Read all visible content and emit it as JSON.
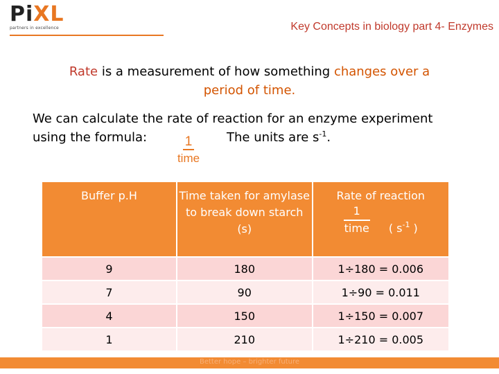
{
  "logo": {
    "name_prefix": "Pi",
    "name_suffix": "XL",
    "tagline": "partners in excellence"
  },
  "header": {
    "title": "Key Concepts in biology part 4- Enzymes"
  },
  "intro": {
    "word_rate": "Rate",
    "part1": " is a measurement of how something ",
    "changes": "changes over a",
    "period": "period of time."
  },
  "body": {
    "line1": "We can calculate the rate of reaction for an enzyme experiment",
    "line2": "using the formula:",
    "units_prefix": "The units are s",
    "units_sup": "-1",
    "units_suffix": "."
  },
  "formula": {
    "numerator": "1",
    "denominator": "time"
  },
  "table": {
    "headers": {
      "ph": "Buffer p.H",
      "time": "Time taken for amylase to break down starch (s)",
      "rate_title": "Rate of reaction",
      "rate_num": "1",
      "rate_den": "time",
      "rate_units": "( s",
      "rate_units_sup": "-1",
      "rate_units_end": " )"
    },
    "rows": [
      {
        "ph": "9",
        "time": "180",
        "rate": "1÷180 = 0.006"
      },
      {
        "ph": "7",
        "time": "90",
        "rate": "1÷90 = 0.011"
      },
      {
        "ph": "4",
        "time": "150",
        "rate": "1÷150 = 0.007"
      },
      {
        "ph": "1",
        "time": "210",
        "rate": "1÷210 = 0.005"
      }
    ]
  },
  "footer": {
    "text": "Better hope – brighter future"
  },
  "colors": {
    "accent": "#e87722",
    "header_fill": "#f28b33",
    "title_red": "#c0392b"
  }
}
